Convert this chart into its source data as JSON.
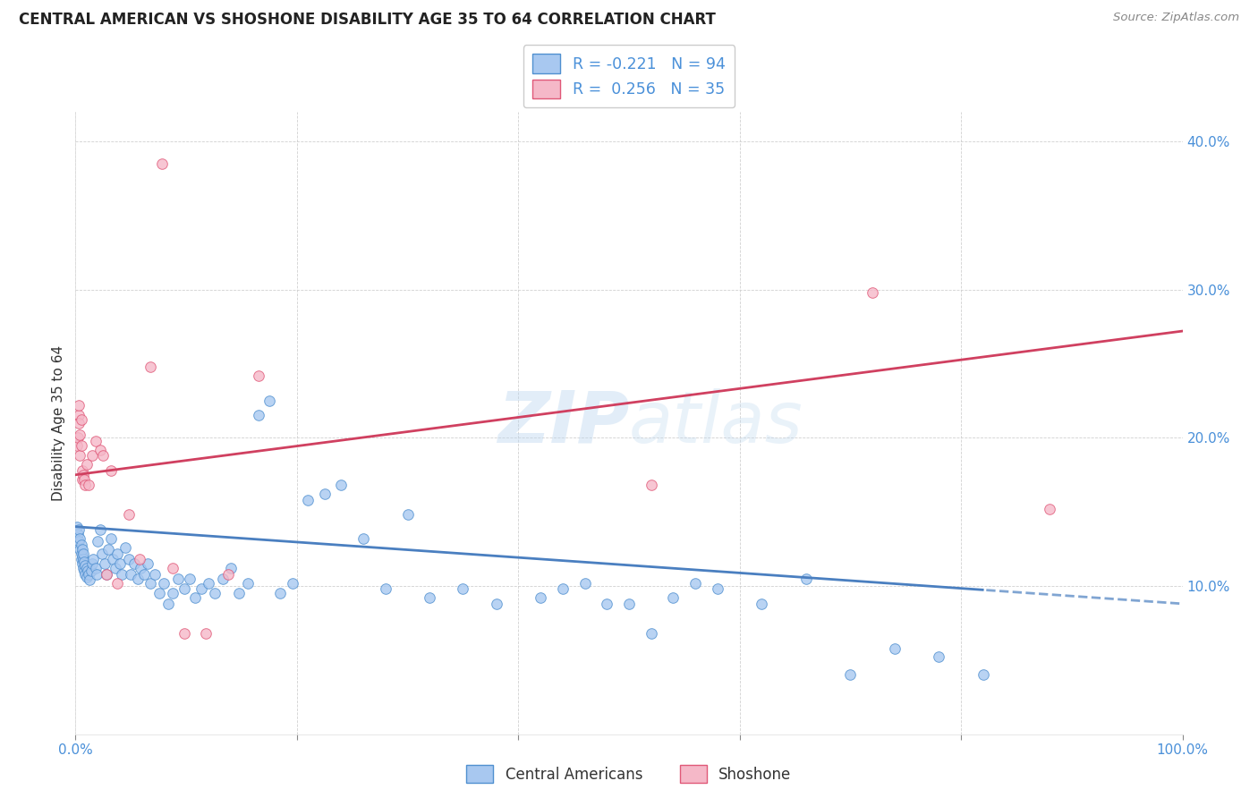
{
  "title": "CENTRAL AMERICAN VS SHOSHONE DISABILITY AGE 35 TO 64 CORRELATION CHART",
  "source": "Source: ZipAtlas.com",
  "ylabel": "Disability Age 35 to 64",
  "watermark": "ZIPatlas",
  "x_min": 0.0,
  "x_max": 1.0,
  "y_min": 0.0,
  "y_max": 0.42,
  "x_ticks": [
    0.0,
    0.2,
    0.4,
    0.6,
    0.8,
    1.0
  ],
  "x_ticklabels": [
    "0.0%",
    "",
    "",
    "",
    "",
    "100.0%"
  ],
  "y_ticks": [
    0.0,
    0.1,
    0.2,
    0.3,
    0.4
  ],
  "y_ticklabels": [
    "",
    "10.0%",
    "20.0%",
    "30.0%",
    "40.0%"
  ],
  "blue_R": -0.221,
  "blue_N": 94,
  "pink_R": 0.256,
  "pink_N": 35,
  "blue_color": "#a8c8f0",
  "pink_color": "#f5b8c8",
  "blue_edge_color": "#5090d0",
  "pink_edge_color": "#e05878",
  "blue_line_color": "#4a7fc0",
  "pink_line_color": "#d04060",
  "legend_label_blue": "Central Americans",
  "legend_label_pink": "Shoshone",
  "blue_scatter_x": [
    0.001,
    0.002,
    0.003,
    0.003,
    0.004,
    0.004,
    0.005,
    0.005,
    0.005,
    0.006,
    0.006,
    0.006,
    0.007,
    0.007,
    0.007,
    0.008,
    0.008,
    0.009,
    0.009,
    0.01,
    0.01,
    0.011,
    0.012,
    0.013,
    0.014,
    0.015,
    0.016,
    0.018,
    0.019,
    0.02,
    0.022,
    0.024,
    0.026,
    0.028,
    0.03,
    0.032,
    0.034,
    0.036,
    0.038,
    0.04,
    0.042,
    0.045,
    0.048,
    0.05,
    0.053,
    0.056,
    0.059,
    0.062,
    0.065,
    0.068,
    0.072,
    0.076,
    0.08,
    0.084,
    0.088,
    0.093,
    0.098,
    0.103,
    0.108,
    0.114,
    0.12,
    0.126,
    0.133,
    0.14,
    0.148,
    0.156,
    0.165,
    0.175,
    0.185,
    0.196,
    0.21,
    0.225,
    0.24,
    0.26,
    0.28,
    0.3,
    0.32,
    0.35,
    0.38,
    0.42,
    0.46,
    0.5,
    0.54,
    0.58,
    0.62,
    0.66,
    0.7,
    0.74,
    0.78,
    0.82,
    0.44,
    0.48,
    0.52,
    0.56
  ],
  "blue_scatter_y": [
    0.14,
    0.135,
    0.13,
    0.138,
    0.125,
    0.132,
    0.118,
    0.122,
    0.128,
    0.115,
    0.12,
    0.125,
    0.112,
    0.118,
    0.122,
    0.11,
    0.116,
    0.108,
    0.114,
    0.106,
    0.112,
    0.11,
    0.108,
    0.104,
    0.11,
    0.115,
    0.118,
    0.112,
    0.108,
    0.13,
    0.138,
    0.122,
    0.115,
    0.108,
    0.125,
    0.132,
    0.118,
    0.112,
    0.122,
    0.115,
    0.108,
    0.126,
    0.118,
    0.108,
    0.115,
    0.105,
    0.112,
    0.108,
    0.115,
    0.102,
    0.108,
    0.095,
    0.102,
    0.088,
    0.095,
    0.105,
    0.098,
    0.105,
    0.092,
    0.098,
    0.102,
    0.095,
    0.105,
    0.112,
    0.095,
    0.102,
    0.215,
    0.225,
    0.095,
    0.102,
    0.158,
    0.162,
    0.168,
    0.132,
    0.098,
    0.148,
    0.092,
    0.098,
    0.088,
    0.092,
    0.102,
    0.088,
    0.092,
    0.098,
    0.088,
    0.105,
    0.04,
    0.058,
    0.052,
    0.04,
    0.098,
    0.088,
    0.068,
    0.102
  ],
  "pink_scatter_x": [
    0.001,
    0.002,
    0.003,
    0.003,
    0.003,
    0.004,
    0.004,
    0.005,
    0.005,
    0.006,
    0.006,
    0.007,
    0.008,
    0.009,
    0.01,
    0.012,
    0.015,
    0.018,
    0.022,
    0.025,
    0.028,
    0.032,
    0.038,
    0.048,
    0.058,
    0.068,
    0.078,
    0.088,
    0.098,
    0.118,
    0.138,
    0.165,
    0.52,
    0.72,
    0.88
  ],
  "pink_scatter_y": [
    0.195,
    0.2,
    0.215,
    0.222,
    0.21,
    0.188,
    0.202,
    0.195,
    0.212,
    0.172,
    0.178,
    0.175,
    0.172,
    0.168,
    0.182,
    0.168,
    0.188,
    0.198,
    0.192,
    0.188,
    0.108,
    0.178,
    0.102,
    0.148,
    0.118,
    0.248,
    0.385,
    0.112,
    0.068,
    0.068,
    0.108,
    0.242,
    0.168,
    0.298,
    0.152
  ],
  "blue_line_start_y": 0.14,
  "blue_line_end_y": 0.088,
  "pink_line_start_y": 0.175,
  "pink_line_end_y": 0.272
}
